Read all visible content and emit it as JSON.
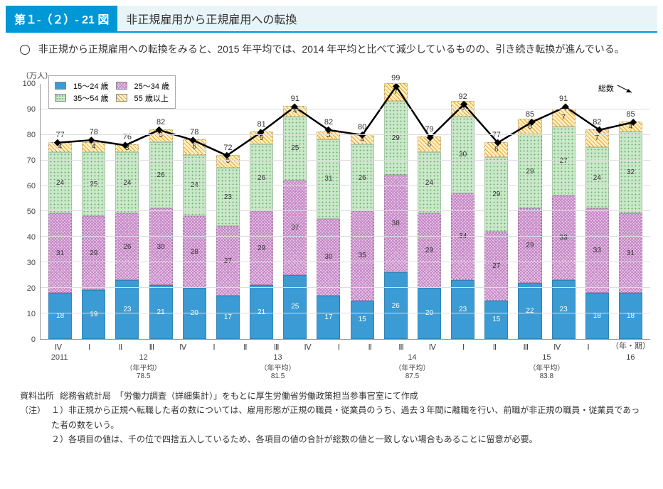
{
  "header": {
    "figNum": "第１-（２）- 21 図",
    "title": "非正規雇用から正規雇用への転換"
  },
  "summary": "非正規から正規雇用への転換をみると、2015 年平均では、2014 年平均と比べて減少しているものの、引き続き転換が進んでいる。",
  "chart": {
    "type": "stacked-bar+line",
    "yLabel": "（万人）",
    "xLabelRight": "（年・期）",
    "ymin": 0,
    "ymax": 100,
    "ytickStep": 10,
    "legend": [
      "15～24 歳",
      "25～34 歳",
      "35～54 歳",
      "55 歳以上"
    ],
    "totalLabel": "総数",
    "colors": {
      "s0": "#3b9bd4",
      "s1": "#e8c8e8",
      "s2": "#c8e8c8",
      "s3": "#fff0c0",
      "line": "#000000",
      "grid": "#dddddd",
      "axis": "#999999"
    },
    "categories": [
      "Ⅳ",
      "Ⅰ",
      "Ⅱ",
      "Ⅲ",
      "Ⅳ",
      "Ⅰ",
      "Ⅱ",
      "Ⅲ",
      "Ⅳ",
      "Ⅰ",
      "Ⅱ",
      "Ⅲ",
      "Ⅳ",
      "Ⅰ",
      "Ⅱ",
      "Ⅲ",
      "Ⅳ",
      "Ⅰ"
    ],
    "groups": [
      {
        "label": "2011",
        "sub": "",
        "avg": "",
        "span": 1
      },
      {
        "label": "12",
        "sub": "（年平均）",
        "avg": "78.5",
        "span": 4
      },
      {
        "label": "13",
        "sub": "（年平均）",
        "avg": "81.5",
        "span": 4
      },
      {
        "label": "14",
        "sub": "（年平均）",
        "avg": "87.5",
        "span": 4
      },
      {
        "label": "15",
        "sub": "（年平均）",
        "avg": "83.8",
        "span": 4
      },
      {
        "label": "16",
        "sub": "",
        "avg": "",
        "span": 1
      }
    ],
    "stacks": [
      [
        18,
        31,
        24,
        4
      ],
      [
        19,
        29,
        25,
        4
      ],
      [
        23,
        26,
        24,
        3
      ],
      [
        21,
        30,
        26,
        5
      ],
      [
        20,
        28,
        24,
        6
      ],
      [
        17,
        27,
        23,
        5
      ],
      [
        21,
        29,
        26,
        5
      ],
      [
        25,
        37,
        25,
        4
      ],
      [
        17,
        30,
        31,
        3
      ],
      [
        15,
        35,
        26,
        4
      ],
      [
        26,
        38,
        29,
        7
      ],
      [
        20,
        29,
        24,
        6
      ],
      [
        23,
        34,
        30,
        6
      ],
      [
        15,
        27,
        29,
        6
      ],
      [
        22,
        29,
        29,
        6
      ],
      [
        23,
        33,
        27,
        7
      ],
      [
        18,
        33,
        24,
        7
      ],
      [
        18,
        31,
        32,
        4
      ]
    ],
    "totals": [
      77,
      78,
      76,
      82,
      78,
      72,
      81,
      91,
      82,
      80,
      99,
      79,
      92,
      77,
      85,
      91,
      82,
      85
    ]
  },
  "notes": {
    "sourceLabel": "資料出所",
    "source": "総務省統計局　「労働力調査（詳細集計）」をもとに厚生労働省労働政策担当参事官室にて作成",
    "noteLabel": "（注）",
    "items": [
      "１）非正規から正規へ転職した者の数については、雇用形態が正規の職員・従業員のうち、過去３年間に離職を行い、前職が非正規の職員・従業員であった者の数をいう。",
      "２）各項目の値は、千の位で四捨五入しているため、各項目の値の合計が総数の値と一致しない場合もあることに留意が必要。"
    ]
  }
}
